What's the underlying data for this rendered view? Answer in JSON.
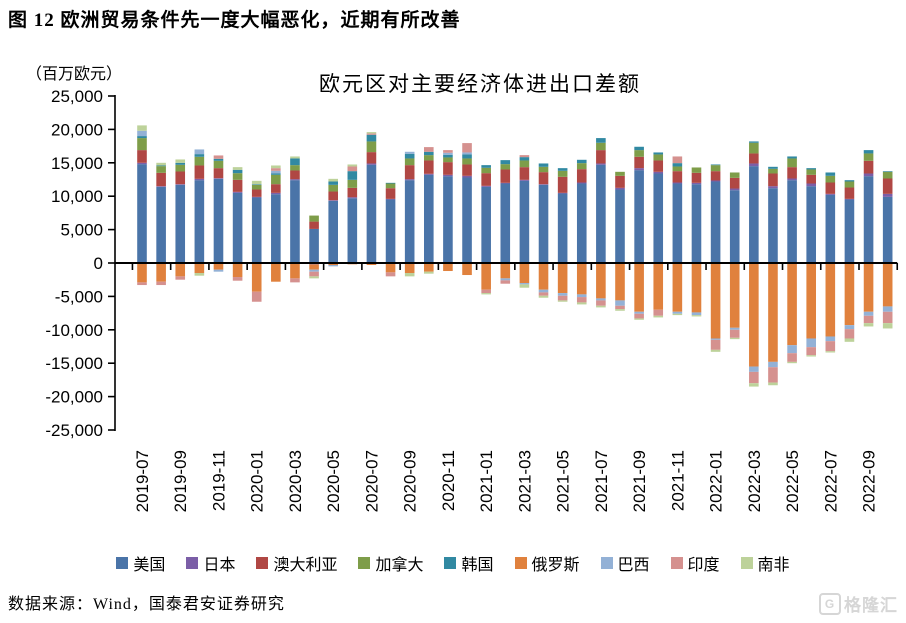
{
  "figure_title": "图 12 欧洲贸易条件先一度大幅恶化，近期有所改善",
  "source_note": "数据来源：Wind，国泰君安证券研究",
  "watermark": {
    "logo_glyph": "G",
    "text": "格隆汇"
  },
  "chart_data": {
    "type": "bar",
    "stacked": true,
    "title": "欧元区对主要经济体进出口差额",
    "unit_label": "（百万欧元）",
    "grid": false,
    "legend_position": "bottom",
    "ylim": [
      -25000,
      25000
    ],
    "y_ticks": [
      {
        "value": 25000,
        "label": "25,000"
      },
      {
        "value": 20000,
        "label": "20,000"
      },
      {
        "value": 15000,
        "label": "15,000"
      },
      {
        "value": 10000,
        "label": "10,000"
      },
      {
        "value": 5000,
        "label": "5,000"
      },
      {
        "value": 0,
        "label": "0"
      },
      {
        "value": -5000,
        "label": "-5,000"
      },
      {
        "value": -10000,
        "label": "-10,000"
      },
      {
        "value": -15000,
        "label": "-15,000"
      },
      {
        "value": -20000,
        "label": "-20,000"
      },
      {
        "value": -25000,
        "label": "-25,000"
      }
    ],
    "x_labels_every": 2,
    "categories": [
      "2019-07",
      "2019-08",
      "2019-09",
      "2019-10",
      "2019-11",
      "2019-12",
      "2020-01",
      "2020-02",
      "2020-03",
      "2020-04",
      "2020-05",
      "2020-06",
      "2020-07",
      "2020-08",
      "2020-09",
      "2020-10",
      "2020-11",
      "2020-12",
      "2021-01",
      "2021-02",
      "2021-03",
      "2021-04",
      "2021-05",
      "2021-06",
      "2021-07",
      "2021-08",
      "2021-09",
      "2021-10",
      "2021-11",
      "2021-12",
      "2022-01",
      "2022-02",
      "2022-03",
      "2022-04",
      "2022-05",
      "2022-06",
      "2022-07",
      "2022-08",
      "2022-09",
      "2022-10"
    ],
    "series": [
      {
        "name": "美国",
        "color": "#4A74A8",
        "values": [
          14800,
          11400,
          11700,
          12400,
          12600,
          10500,
          9800,
          10300,
          12400,
          5100,
          9300,
          9700,
          14700,
          9500,
          12400,
          13200,
          13000,
          12800,
          11400,
          11900,
          12300,
          11700,
          10400,
          11900,
          14700,
          11000,
          13900,
          13400,
          11900,
          11800,
          12200,
          10900,
          14500,
          11200,
          12400,
          11500,
          10200,
          9500,
          13000,
          9900
        ]
      },
      {
        "name": "日本",
        "color": "#7B5EA7",
        "values": [
          200,
          100,
          100,
          200,
          100,
          150,
          100,
          200,
          150,
          -200,
          100,
          150,
          200,
          100,
          150,
          150,
          200,
          250,
          150,
          100,
          150,
          100,
          100,
          150,
          200,
          250,
          300,
          250,
          150,
          200,
          150,
          250,
          400,
          300,
          250,
          400,
          150,
          100,
          400,
          450
        ]
      },
      {
        "name": "澳大利亚",
        "color": "#B04744",
        "values": [
          1900,
          2000,
          1900,
          2000,
          1500,
          1800,
          1100,
          1300,
          1300,
          1100,
          1300,
          1400,
          1700,
          1600,
          2100,
          2000,
          1900,
          1700,
          1900,
          2000,
          1900,
          1800,
          2400,
          2000,
          2000,
          1800,
          1700,
          1700,
          1700,
          1500,
          1400,
          1600,
          1500,
          1900,
          1700,
          1300,
          1700,
          1700,
          1900,
          2300
        ]
      },
      {
        "name": "加拿大",
        "color": "#7E9D49",
        "values": [
          1800,
          1000,
          1000,
          1300,
          1100,
          1000,
          700,
          1400,
          800,
          900,
          1000,
          1200,
          1600,
          700,
          1000,
          800,
          700,
          900,
          800,
          800,
          1000,
          800,
          900,
          900,
          1100,
          600,
          1000,
          900,
          700,
          800,
          900,
          800,
          1600,
          700,
          1300,
          800,
          1000,
          900,
          1100,
          1000
        ]
      },
      {
        "name": "韩国",
        "color": "#3189A2",
        "values": [
          300,
          100,
          300,
          400,
          300,
          500,
          100,
          200,
          1000,
          0,
          500,
          1300,
          1000,
          100,
          700,
          500,
          400,
          600,
          400,
          600,
          500,
          500,
          400,
          500,
          700,
          0,
          500,
          300,
          500,
          0,
          100,
          0,
          200,
          300,
          300,
          200,
          500,
          200,
          500,
          100
        ]
      },
      {
        "name": "俄罗斯",
        "color": "#E0813D",
        "values": [
          -2900,
          -2800,
          -2000,
          -1500,
          -1000,
          -2100,
          -4300,
          -2800,
          -2300,
          -800,
          -300,
          -200,
          -300,
          -1400,
          -1500,
          -1300,
          -1200,
          -1800,
          -4000,
          -2300,
          -3000,
          -4000,
          -4500,
          -4700,
          -5300,
          -5600,
          -7300,
          -7000,
          -7300,
          -7400,
          -11300,
          -9700,
          -15500,
          -14800,
          -12300,
          -11300,
          -11000,
          -9300,
          -7300,
          -6500
        ]
      },
      {
        "name": "巴西",
        "color": "#93B1D6",
        "values": [
          800,
          0,
          0,
          700,
          -300,
          0,
          0,
          400,
          0,
          -300,
          -200,
          0,
          0,
          0,
          300,
          0,
          300,
          300,
          0,
          -300,
          -200,
          -400,
          -400,
          -400,
          -300,
          -800,
          -300,
          0,
          -300,
          -400,
          -200,
          -300,
          -800,
          -800,
          -1200,
          -1300,
          -700,
          -600,
          -600,
          -800
        ]
      },
      {
        "name": "印度",
        "color": "#D5918F",
        "values": [
          -400,
          -500,
          -500,
          0,
          500,
          -550,
          -1500,
          400,
          -600,
          -700,
          0,
          700,
          200,
          -600,
          0,
          700,
          400,
          1400,
          -500,
          -500,
          300,
          -500,
          -700,
          -800,
          -800,
          -500,
          -700,
          -900,
          1000,
          0,
          -1500,
          -1200,
          -1700,
          -2300,
          -1300,
          -1200,
          -1500,
          -1400,
          -1100,
          -1700
        ]
      },
      {
        "name": "南非",
        "color": "#BDD29A",
        "values": [
          800,
          400,
          500,
          -400,
          0,
          400,
          500,
          400,
          300,
          -300,
          400,
          300,
          200,
          0,
          -500,
          -300,
          0,
          0,
          -200,
          0,
          -500,
          -300,
          -200,
          -300,
          -250,
          -250,
          -200,
          -250,
          -200,
          -200,
          -300,
          -200,
          -500,
          -400,
          -200,
          -200,
          -200,
          -500,
          -500,
          -800
        ]
      }
    ]
  }
}
